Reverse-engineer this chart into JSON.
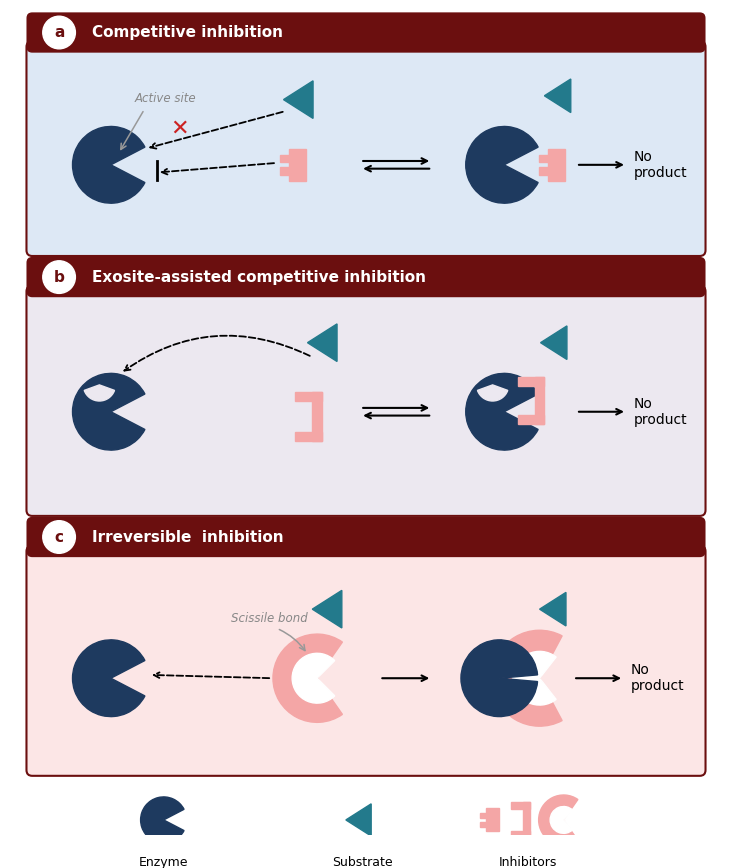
{
  "bg_color": "#ffffff",
  "enzyme_color": "#1e3a5f",
  "substrate_color": "#237a8c",
  "inhibitor_color": "#f4a6a6",
  "panel_a_bg": "#dde8f5",
  "panel_b_bg": "#ece8f0",
  "panel_c_bg": "#fce6e6",
  "header_color": "#6b0f0f",
  "label_a": "a",
  "label_b": "b",
  "label_c": "c",
  "title_a": "Competitive inhibition",
  "title_b": "Exosite-assisted competitive inhibition",
  "title_c": "Irreversible  inhibition",
  "no_product_text": "No\nproduct",
  "active_site_text": "Active site",
  "scissile_bond_text": "Scissile bond",
  "legend_enzyme": "Enzyme",
  "legend_substrate": "Substrate",
  "legend_inhibitors": "Inhibitors"
}
